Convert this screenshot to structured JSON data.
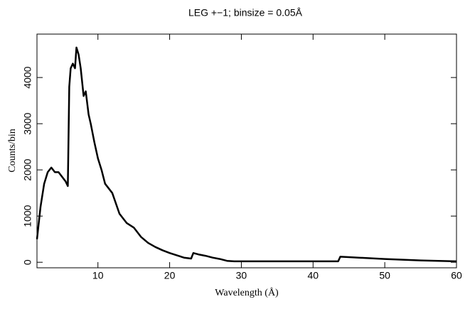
{
  "chart_data": {
    "type": "line",
    "title": "LEG +−1; binsize = 0.05Å",
    "xlabel": "Wavelength (Å)",
    "ylabel": "Counts/bin",
    "x": [
      1.5,
      2,
      2.5,
      3,
      3.5,
      4,
      4.5,
      5,
      5.5,
      5.8,
      6.0,
      6.2,
      6.5,
      6.8,
      7.0,
      7.3,
      7.6,
      8.0,
      8.3,
      8.7,
      9.0,
      9.5,
      10,
      10.5,
      11,
      12,
      13,
      14,
      15,
      16,
      17,
      18,
      19,
      20,
      21,
      22,
      23,
      23.3,
      24,
      25,
      26,
      27,
      28,
      29,
      30,
      35,
      40,
      43.5,
      43.8,
      45,
      50,
      55,
      60
    ],
    "series": [
      {
        "color": "#000000",
        "values": [
          500,
          1200,
          1700,
          1950,
          2050,
          1950,
          1950,
          1850,
          1750,
          1650,
          3800,
          4200,
          4300,
          4200,
          4650,
          4500,
          4200,
          3600,
          3700,
          3200,
          3000,
          2600,
          2250,
          2000,
          1700,
          1500,
          1050,
          850,
          750,
          550,
          420,
          330,
          260,
          200,
          150,
          100,
          80,
          200,
          170,
          140,
          100,
          70,
          30,
          20,
          20,
          20,
          20,
          20,
          120,
          110,
          70,
          40,
          20
        ]
      }
    ],
    "xlim": [
      1.5,
      60
    ],
    "ylim": [
      -120,
      4940
    ],
    "xticks": [
      10,
      20,
      30,
      40,
      50,
      60
    ],
    "yticks": [
      0,
      1000,
      2000,
      3000,
      4000
    ]
  }
}
